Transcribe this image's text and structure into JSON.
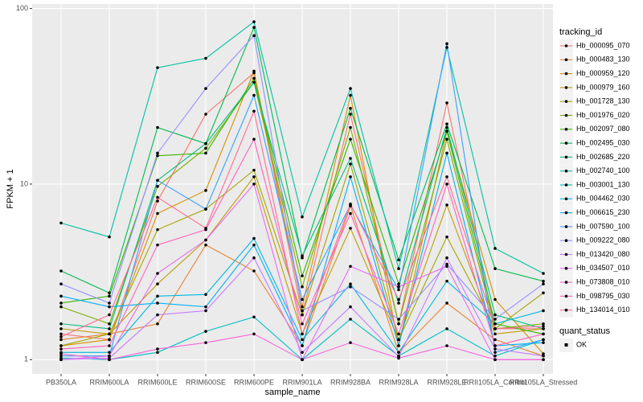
{
  "chart_data": {
    "type": "line",
    "x_label": "sample_name",
    "y_label": "FPKM + 1",
    "log_y": true,
    "grid": true,
    "legend_title": "tracking_id",
    "shape_legend": {
      "title": "quant_status",
      "labels": [
        "OK"
      ]
    },
    "categories": [
      "PB350LA",
      "RRIM600LA",
      "RRIM600LE",
      "RRIM600SE",
      "RRIM600PE",
      "RRIM901LA",
      "RRIM928BA",
      "RRIM928LA",
      "RRIM928LE",
      "RRII105LA_Control",
      "RRII105LA_Stressed"
    ],
    "ylim": [
      0.83,
      106
    ],
    "yticks": [
      1,
      10,
      100
    ],
    "series": [
      {
        "name": "Hb_000095_070",
        "color": "#F8766D",
        "values": [
          1.4,
          1.3,
          8,
          25,
          43,
          1.8,
          25,
          1.6,
          29,
          1.5,
          1.5
        ]
      },
      {
        "name": "Hb_000483_130",
        "color": "#EA8331",
        "values": [
          1.3,
          1.4,
          1.6,
          4.5,
          3.2,
          1.2,
          7.5,
          1.1,
          2.1,
          1.3,
          1.05
        ]
      },
      {
        "name": "Hb_000959_120",
        "color": "#D89000",
        "values": [
          1.2,
          1.3,
          6.8,
          9.2,
          44,
          2.0,
          32,
          1.2,
          20,
          2.2,
          1.08
        ]
      },
      {
        "name": "Hb_000979_160",
        "color": "#C09B00",
        "values": [
          1.5,
          1.4,
          2.7,
          4.8,
          11,
          1.4,
          5.6,
          1.3,
          7.6,
          1.4,
          1.5
        ]
      },
      {
        "name": "Hb_001728_130",
        "color": "#A3A500",
        "values": [
          1.2,
          1.4,
          5.5,
          7.2,
          12,
          1.8,
          13,
          1.3,
          5,
          1.5,
          2.4
        ]
      },
      {
        "name": "Hb_001976_020",
        "color": "#7CAE00",
        "values": [
          2.0,
          1.6,
          9.7,
          16,
          38,
          2.6,
          21,
          1.6,
          18,
          1.5,
          1.6
        ]
      },
      {
        "name": "Hb_002097_080",
        "color": "#39B600",
        "values": [
          2.1,
          2.3,
          14.5,
          15,
          40,
          3.0,
          18,
          2.7,
          20,
          1.6,
          1.4
        ]
      },
      {
        "name": "Hb_002495_030",
        "color": "#00BB4E",
        "values": [
          3.2,
          2.4,
          21,
          17,
          78,
          3.8,
          27,
          3.7,
          22,
          3.3,
          2.8
        ]
      },
      {
        "name": "Hb_002685_220",
        "color": "#00BF7D",
        "values": [
          1.6,
          1.5,
          10.5,
          17,
          38,
          3.9,
          14,
          2.1,
          21,
          1.8,
          1.5
        ]
      },
      {
        "name": "Hb_002740_100",
        "color": "#00C1A3",
        "values": [
          6.0,
          5.0,
          46,
          52,
          84,
          6.5,
          35,
          3.3,
          60,
          4.3,
          3.1
        ]
      },
      {
        "name": "Hb_003001_130",
        "color": "#00BFC4",
        "values": [
          1.02,
          1.0,
          1.1,
          1.45,
          1.75,
          1.0,
          1.7,
          1.05,
          1.5,
          1.05,
          1.3
        ]
      },
      {
        "name": "Hb_004462_030",
        "color": "#00BAE0",
        "values": [
          1.1,
          1.1,
          2.3,
          2.35,
          4.9,
          1.3,
          2.7,
          1.1,
          2.8,
          1.6,
          1.9
        ]
      },
      {
        "name": "Hb_006615_230",
        "color": "#00B0F6",
        "values": [
          2.3,
          2.0,
          2.1,
          2.0,
          4.5,
          1.2,
          11,
          1.2,
          15,
          1.2,
          1.25
        ]
      },
      {
        "name": "Hb_007590_100",
        "color": "#35A2FF",
        "values": [
          1.05,
          1.05,
          10.5,
          7.2,
          32,
          2.2,
          7.6,
          2.5,
          63,
          1.1,
          1.3
        ]
      },
      {
        "name": "Hb_009222_080",
        "color": "#9590FF",
        "values": [
          2.7,
          2.1,
          15,
          35,
          70,
          1.9,
          2.6,
          1.7,
          3.5,
          1.7,
          2.7
        ]
      },
      {
        "name": "Hb_013420_080",
        "color": "#C77CFF",
        "values": [
          1.0,
          1.02,
          1.8,
          1.9,
          3.8,
          1.1,
          2.0,
          1.04,
          3.8,
          1.15,
          1.05
        ]
      },
      {
        "name": "Hb_034507_010",
        "color": "#E76BF3",
        "values": [
          1.0,
          1.05,
          3.1,
          4.8,
          10,
          1.0,
          3.4,
          2.6,
          3.4,
          1.0,
          1.0
        ]
      },
      {
        "name": "Hb_073808_010",
        "color": "#FA62DB",
        "values": [
          1.08,
          1.0,
          1.15,
          1.25,
          1.4,
          1.0,
          1.25,
          1.02,
          1.2,
          1.0,
          1.0
        ]
      },
      {
        "name": "Hb_098795_030",
        "color": "#FF62BC",
        "values": [
          1.15,
          1.2,
          4.5,
          5.5,
          18,
          1.6,
          6.8,
          1.4,
          10,
          1.2,
          1.4
        ]
      },
      {
        "name": "Hb_134014_010",
        "color": "#FF6C91",
        "values": [
          1.35,
          1.8,
          8.4,
          5.6,
          26,
          1.4,
          7.7,
          2.2,
          11,
          1.5,
          1.55
        ]
      }
    ]
  }
}
